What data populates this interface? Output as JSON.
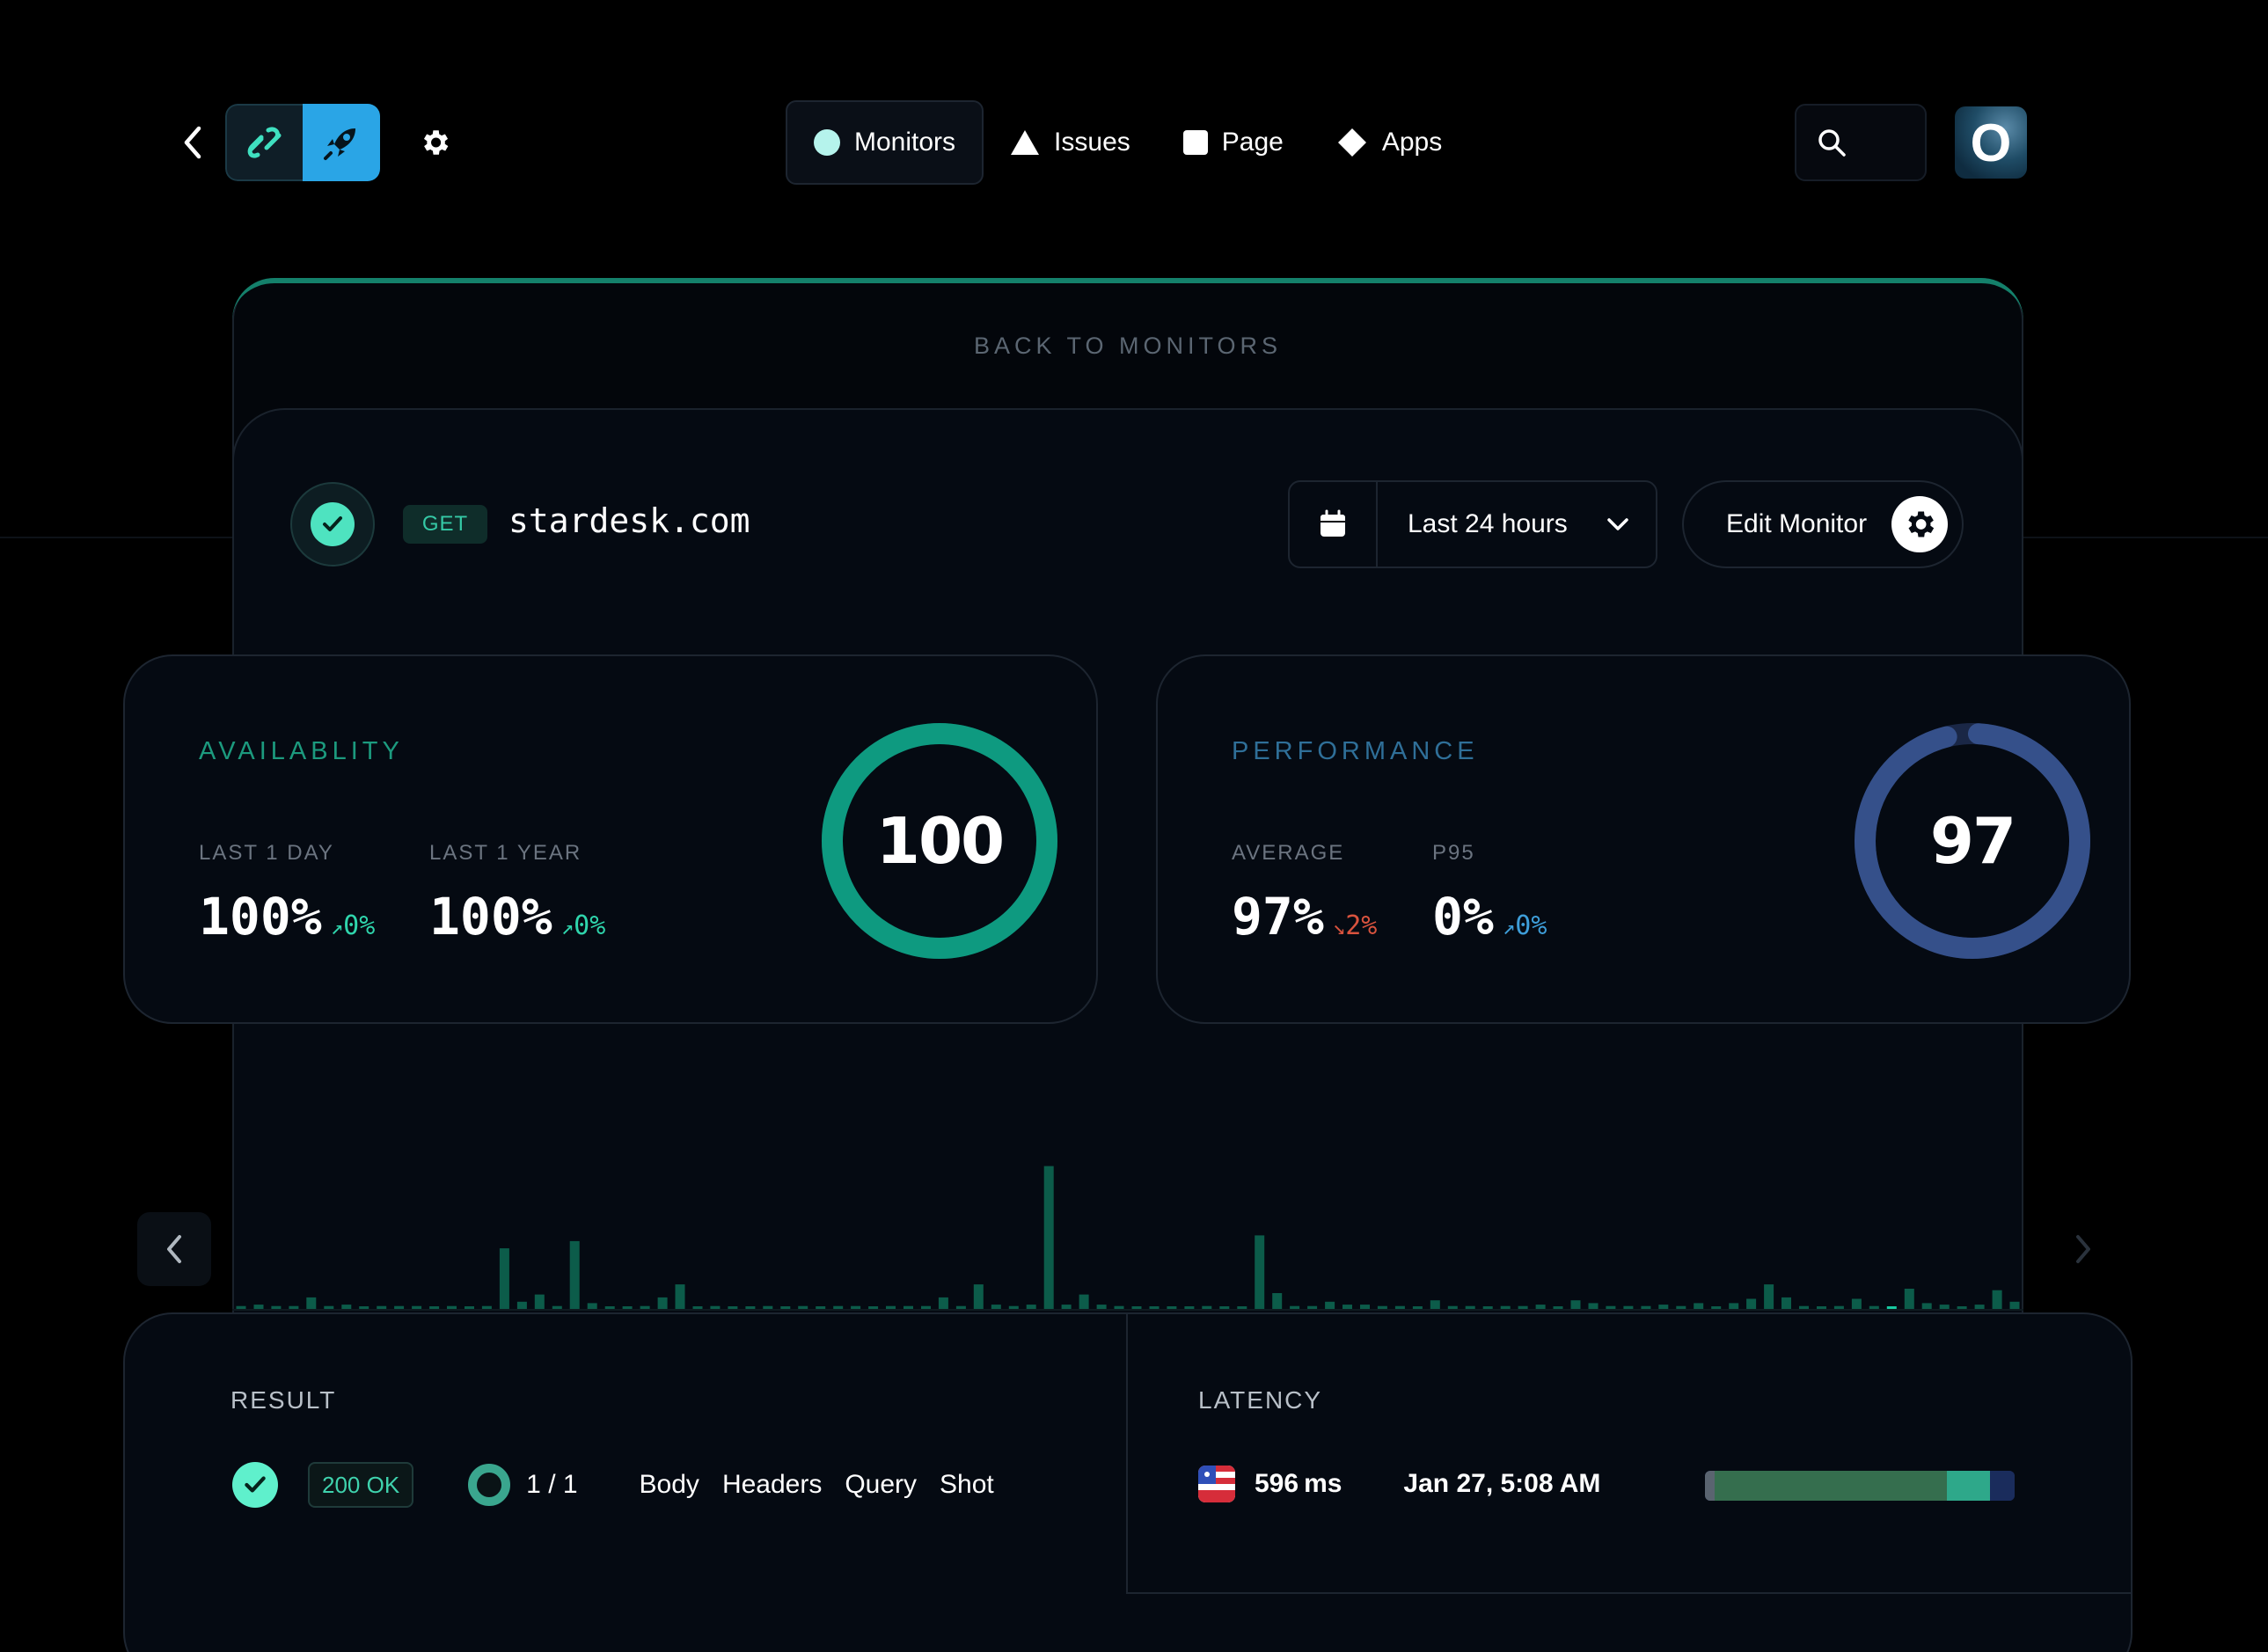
{
  "nav": {
    "items": [
      {
        "label": "Monitors",
        "icon": "circle-icon"
      },
      {
        "label": "Issues",
        "icon": "triangle-icon"
      },
      {
        "label": "Page",
        "icon": "square-icon"
      },
      {
        "label": "Apps",
        "icon": "diamond-icon"
      }
    ],
    "avatar_letter": "O"
  },
  "back_link": "BACK TO MONITORS",
  "monitor": {
    "method": "GET",
    "host": "stardesk.com",
    "range_label": "Last 24 hours",
    "edit_label": "Edit Monitor"
  },
  "availability": {
    "title": "AVAILABLITY",
    "score": "100",
    "score_fraction": 1.0,
    "stats": [
      {
        "label": "LAST 1 DAY",
        "value": "100%",
        "delta": "0%",
        "direction": "up"
      },
      {
        "label": "LAST 1 YEAR",
        "value": "100%",
        "delta": "0%",
        "direction": "up"
      }
    ],
    "color": "#0e9a80"
  },
  "performance": {
    "title": "PERFORMANCE",
    "score": "97",
    "score_fraction": 0.97,
    "stats": [
      {
        "label": "AVERAGE",
        "value": "97%",
        "delta": "2%",
        "direction": "down"
      },
      {
        "label": "P95",
        "value": "0%",
        "delta": "0%",
        "direction": "up"
      }
    ],
    "color": "#35508a"
  },
  "chart_data": {
    "type": "bar",
    "values": [
      2,
      3,
      2,
      2,
      8,
      2,
      3,
      1,
      2,
      2,
      2,
      1,
      2,
      1,
      2,
      42,
      5,
      10,
      2,
      47,
      4,
      1,
      1,
      2,
      8,
      17,
      1,
      2,
      1,
      1,
      2,
      1,
      2,
      1,
      2,
      2,
      1,
      2,
      2,
      2,
      8,
      2,
      17,
      3,
      2,
      3,
      99,
      3,
      10,
      3,
      2,
      1,
      1,
      1,
      1,
      2,
      1,
      1,
      51,
      11,
      2,
      2,
      5,
      3,
      3,
      2,
      2,
      1,
      6,
      2,
      2,
      1,
      2,
      2,
      3,
      1,
      6,
      4,
      2,
      2,
      2,
      3,
      2,
      4,
      1,
      4,
      7,
      17,
      8,
      2,
      1,
      2,
      7,
      2,
      1,
      14,
      4,
      3,
      1,
      3,
      13,
      5
    ],
    "highlight_index": 94,
    "series_color": "#0c5c4a",
    "highlight_color": "#17c9a0"
  },
  "result": {
    "title": "RESULT",
    "status": "200 OK",
    "count": "1 / 1",
    "tabs": [
      "Body",
      "Headers",
      "Query",
      "Shot"
    ]
  },
  "latency": {
    "title": "LATENCY",
    "value": "596",
    "unit": "ms",
    "time": "Jan 27, 5:08 AM",
    "segments": [
      {
        "fraction": 0.03,
        "color": "#5a6470"
      },
      {
        "fraction": 0.75,
        "color": "#356e4e"
      },
      {
        "fraction": 0.14,
        "color": "#2ea88a"
      },
      {
        "fraction": 0.08,
        "color": "#1a2c5c"
      }
    ]
  }
}
